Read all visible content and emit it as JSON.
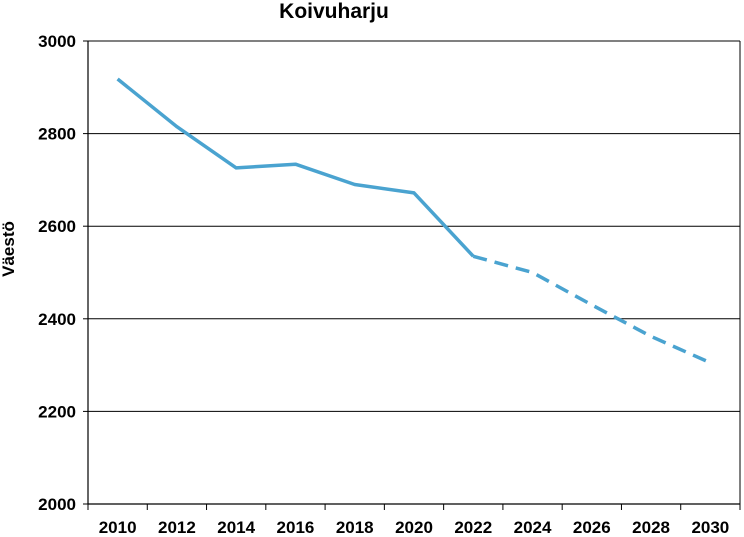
{
  "chart_data": {
    "type": "line",
    "title": "Koivuharju",
    "xlabel": "",
    "ylabel": "Väestö",
    "xlim": [
      2009,
      2031
    ],
    "ylim": [
      2000,
      3000
    ],
    "x_ticks": [
      "2010",
      "2012",
      "2014",
      "2016",
      "2018",
      "2020",
      "2022",
      "2024",
      "2026",
      "2028",
      "2030"
    ],
    "y_ticks": [
      "2000",
      "2200",
      "2400",
      "2600",
      "2800",
      "3000"
    ],
    "grid": "horizontal",
    "legend": "none",
    "color": "#4aa3d0",
    "series": [
      {
        "style": "solid",
        "x": [
          2010,
          2012,
          2014,
          2016,
          2018,
          2020,
          2022
        ],
        "y": [
          2918,
          2815,
          2726,
          2734,
          2690,
          2672,
          2535
        ]
      },
      {
        "style": "dashed",
        "x": [
          2022,
          2024,
          2026,
          2028,
          2030
        ],
        "y": [
          2535,
          2500,
          2430,
          2362,
          2305
        ]
      }
    ]
  }
}
